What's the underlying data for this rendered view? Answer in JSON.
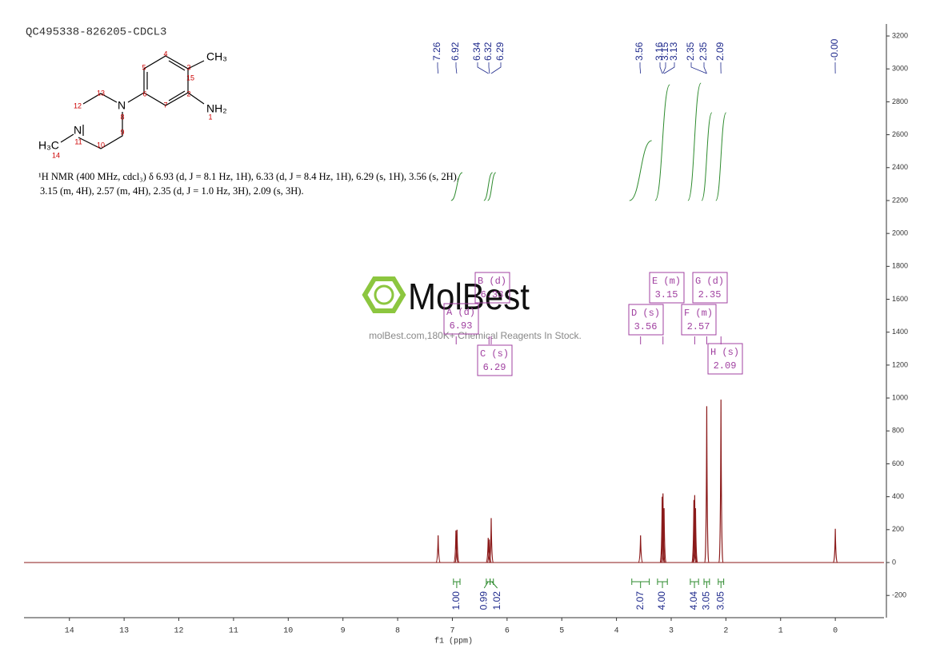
{
  "title": "QC495338-826205-CDCL3",
  "structure": {
    "atom_labels": [
      "CH₃",
      "NH₂",
      "N",
      "N",
      "H₃C"
    ],
    "numbers": [
      "1",
      "2",
      "3",
      "4",
      "5",
      "6",
      "7",
      "8",
      "9",
      "10",
      "11",
      "12",
      "13",
      "14",
      "15"
    ]
  },
  "description": [
    "¹H NMR (400 MHz, cdcl₃) δ 6.93 (d, J = 8.1 Hz, 1H), 6.33 (d, J = 8.4 Hz, 1H), 6.29 (s, 1H), 3.56 (s, 2H),",
    "3.15 (m, 4H), 2.57 (m, 4H), 2.35 (d, J = 1.0 Hz, 3H), 2.09 (s, 3H)."
  ],
  "watermark": {
    "logo": "MolBest",
    "text": "molBest.com,180K+ Chemical Reagents In Stock."
  },
  "chart_data": {
    "type": "nmr",
    "x_label": "f1 (ppm)",
    "xlim": [
      14.83,
      -0.89
    ],
    "ylim": [
      -335,
      3273
    ],
    "xticks": [
      14,
      13,
      12,
      11,
      10,
      9,
      8,
      7,
      6,
      5,
      4,
      3,
      2,
      1,
      0
    ],
    "yticks": [
      -200,
      0,
      200,
      400,
      600,
      800,
      1000,
      1200,
      1400,
      1600,
      1800,
      2000,
      2200,
      2400,
      2600,
      2800,
      3000,
      3200
    ],
    "color": "#8b1a1a",
    "peaks": {
      "x": [
        7.26,
        6.935,
        6.915,
        6.345,
        6.325,
        6.29,
        3.56,
        3.165,
        3.15,
        3.13,
        2.585,
        2.57,
        2.555,
        2.35,
        2.09,
        0
      ],
      "values": [
        165,
        195,
        200,
        150,
        140,
        270,
        165,
        400,
        420,
        330,
        380,
        410,
        330,
        950,
        990,
        205
      ]
    },
    "peak_labels": [
      7.26,
      6.92,
      6.34,
      6.32,
      6.29,
      3.56,
      3.16,
      3.15,
      3.13,
      2.35,
      2.35,
      2.09,
      {
        "value": 0,
        "label": "-0.00"
      }
    ],
    "peak_label_color": "#1f2a8c",
    "integrals": {
      "color": "#2e8b2e",
      "ranges": [
        [
          6.98,
          6.86
        ],
        [
          6.38,
          6.31
        ],
        [
          6.31,
          6.25
        ],
        [
          3.72,
          3.4
        ],
        [
          3.25,
          3.07
        ],
        [
          2.65,
          2.5
        ],
        [
          2.4,
          2.3
        ],
        [
          2.14,
          2.04
        ]
      ],
      "values": [
        {
          "value": 1,
          "label": "1.00"
        },
        {
          "value": 0.99,
          "label": "0.99"
        },
        {
          "value": 1.02,
          "label": "1.02"
        },
        {
          "value": 2.07,
          "label": "2.07"
        },
        {
          "value": 4,
          "label": "4.00"
        },
        {
          "value": 4.04,
          "label": "4.04"
        },
        {
          "value": 3.05,
          "label": "3.05"
        },
        {
          "value": 3.05,
          "label": "3.05"
        }
      ]
    },
    "multiplets": [
      {
        "name": "A (d)",
        "shift": 6.93
      },
      {
        "name": "B (d)",
        "shift": 6.33
      },
      {
        "name": "C (s)",
        "shift": 6.29
      },
      {
        "name": "D (s)",
        "shift": 3.56
      },
      {
        "name": "E (m)",
        "shift": 3.15
      },
      {
        "name": "F (m)",
        "shift": 2.57
      },
      {
        "name": "G (d)",
        "shift": 2.35
      },
      {
        "name": "H (s)",
        "shift": 2.09
      }
    ],
    "multiplet_color": "#a040a0"
  }
}
